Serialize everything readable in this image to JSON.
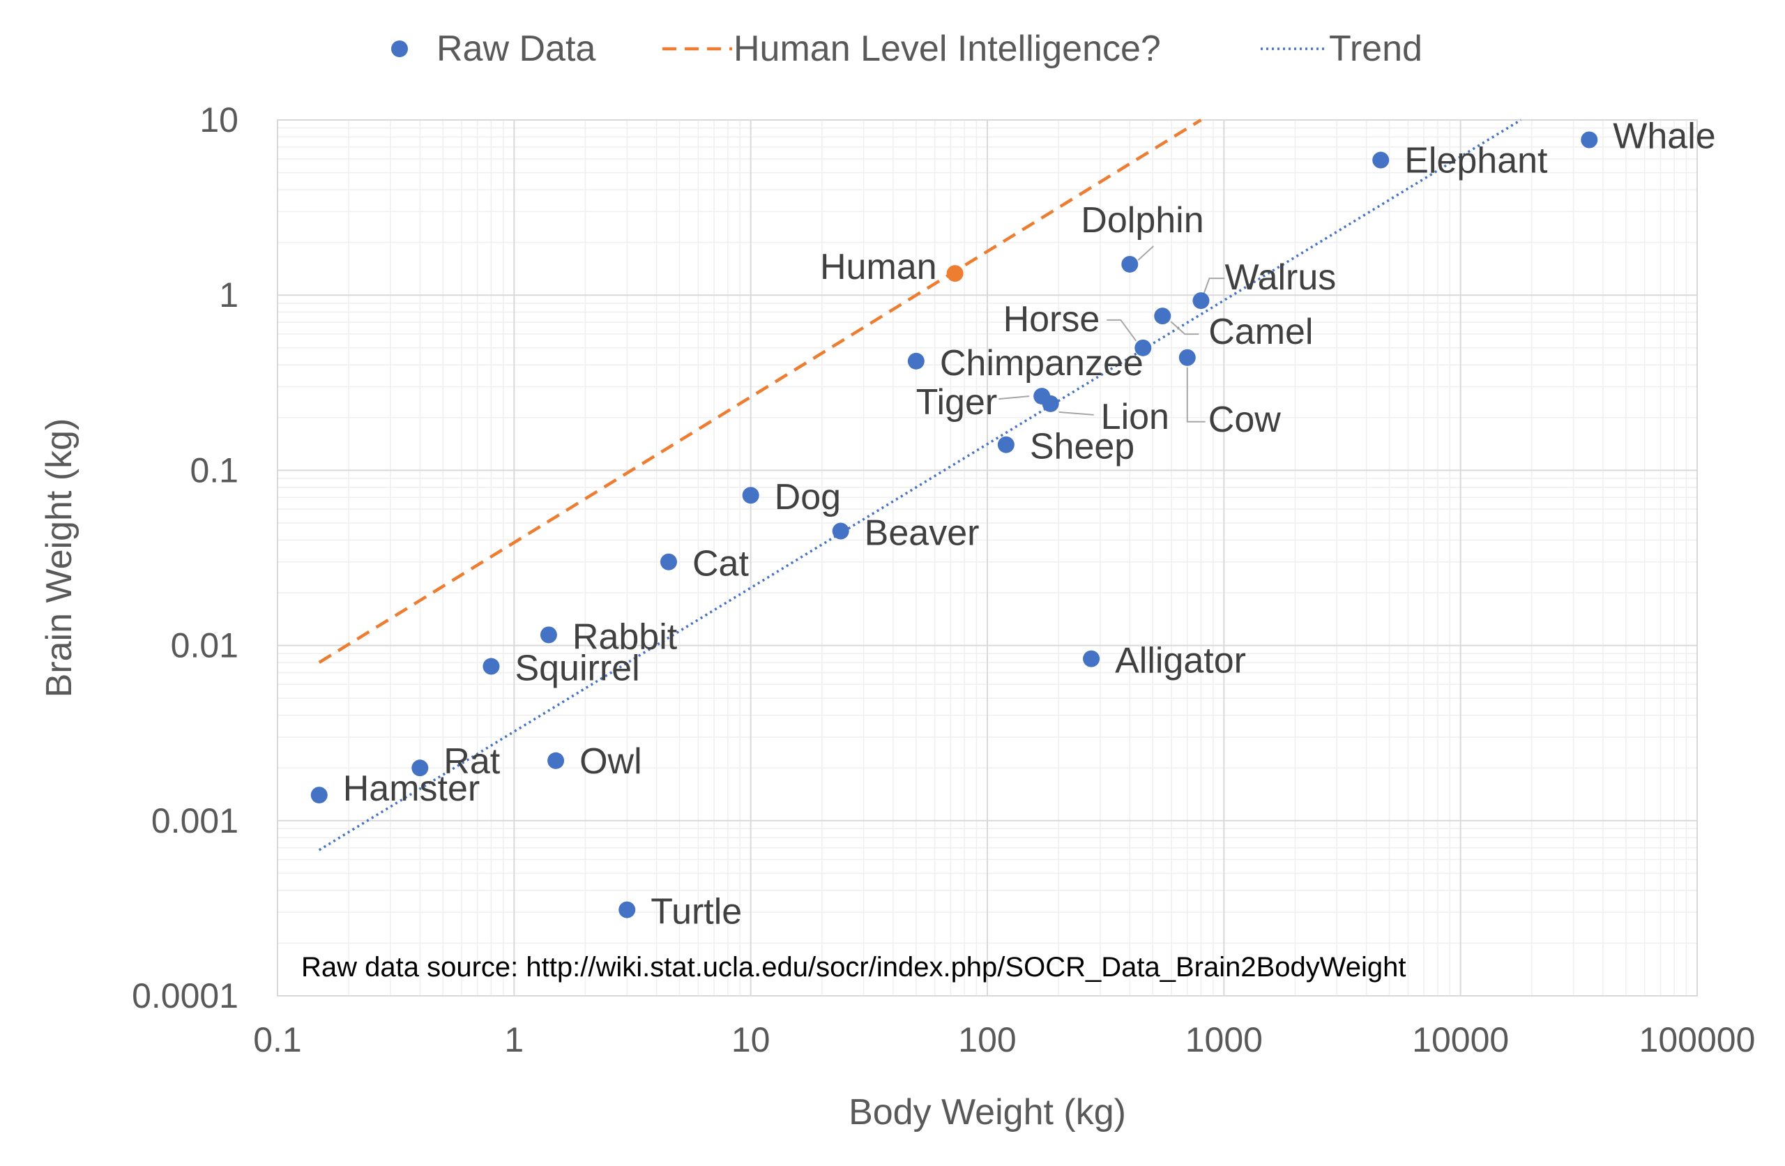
{
  "chart_data": {
    "type": "scatter",
    "xscale": "log",
    "yscale": "log",
    "xlim": [
      0.1,
      100000
    ],
    "ylim": [
      0.0001,
      10
    ],
    "grid": true,
    "legend_position": "top",
    "xlabel": "Body Weight (kg)",
    "ylabel": "Brain Weight (kg)",
    "x_ticks": [
      "0.1",
      "1",
      "10",
      "100",
      "1000",
      "10000",
      "100000"
    ],
    "y_ticks": [
      "0.0001",
      "0.001",
      "0.01",
      "0.1",
      "1",
      "10"
    ],
    "annotation": "Raw data source: http://wiki.stat.ucla.edu/socr/index.php/SOCR_Data_Brain2BodyWeight",
    "legend": {
      "raw_data": "Raw Data",
      "human_level": "Human Level Intelligence?",
      "trend": "Trend"
    },
    "colors": {
      "raw": "#4472C4",
      "human": "#ED7D31",
      "trend": "#4472C4",
      "grid_major": "#D9D9D9",
      "grid_minor": "#EFEFEF",
      "text": "#595959"
    },
    "points": [
      {
        "label": "Hamster",
        "x": 0.15,
        "y": 0.0014
      },
      {
        "label": "Rat",
        "x": 0.4,
        "y": 0.002
      },
      {
        "label": "Squirrel",
        "x": 0.8,
        "y": 0.0076
      },
      {
        "label": "Rabbit",
        "x": 1.4,
        "y": 0.0115
      },
      {
        "label": "Owl",
        "x": 1.5,
        "y": 0.0022
      },
      {
        "label": "Turtle",
        "x": 3,
        "y": 0.00031
      },
      {
        "label": "Cat",
        "x": 4.5,
        "y": 0.03
      },
      {
        "label": "Dog",
        "x": 10,
        "y": 0.072
      },
      {
        "label": "Beaver",
        "x": 24,
        "y": 0.045
      },
      {
        "label": "Chimpanzee",
        "x": 50,
        "y": 0.42
      },
      {
        "label": "Human",
        "x": 73,
        "y": 1.33,
        "highlight": true
      },
      {
        "label": "Sheep",
        "x": 120,
        "y": 0.14
      },
      {
        "label": "Tiger",
        "x": 170,
        "y": 0.265
      },
      {
        "label": "Lion",
        "x": 185,
        "y": 0.24
      },
      {
        "label": "Alligator",
        "x": 275,
        "y": 0.0084
      },
      {
        "label": "Dolphin",
        "x": 400,
        "y": 1.5
      },
      {
        "label": "Horse",
        "x": 455,
        "y": 0.5
      },
      {
        "label": "Camel",
        "x": 550,
        "y": 0.76
      },
      {
        "label": "Cow",
        "x": 700,
        "y": 0.44
      },
      {
        "label": "Walrus",
        "x": 800,
        "y": 0.93
      },
      {
        "label": "Elephant",
        "x": 4600,
        "y": 5.9
      },
      {
        "label": "Whale",
        "x": 35000,
        "y": 7.7
      }
    ],
    "human_level_line": {
      "x": [
        0.15,
        800
      ],
      "y": [
        0.008,
        10
      ]
    },
    "trend_line": {
      "x": [
        0.15,
        18000
      ],
      "y": [
        0.00068,
        10
      ]
    }
  }
}
